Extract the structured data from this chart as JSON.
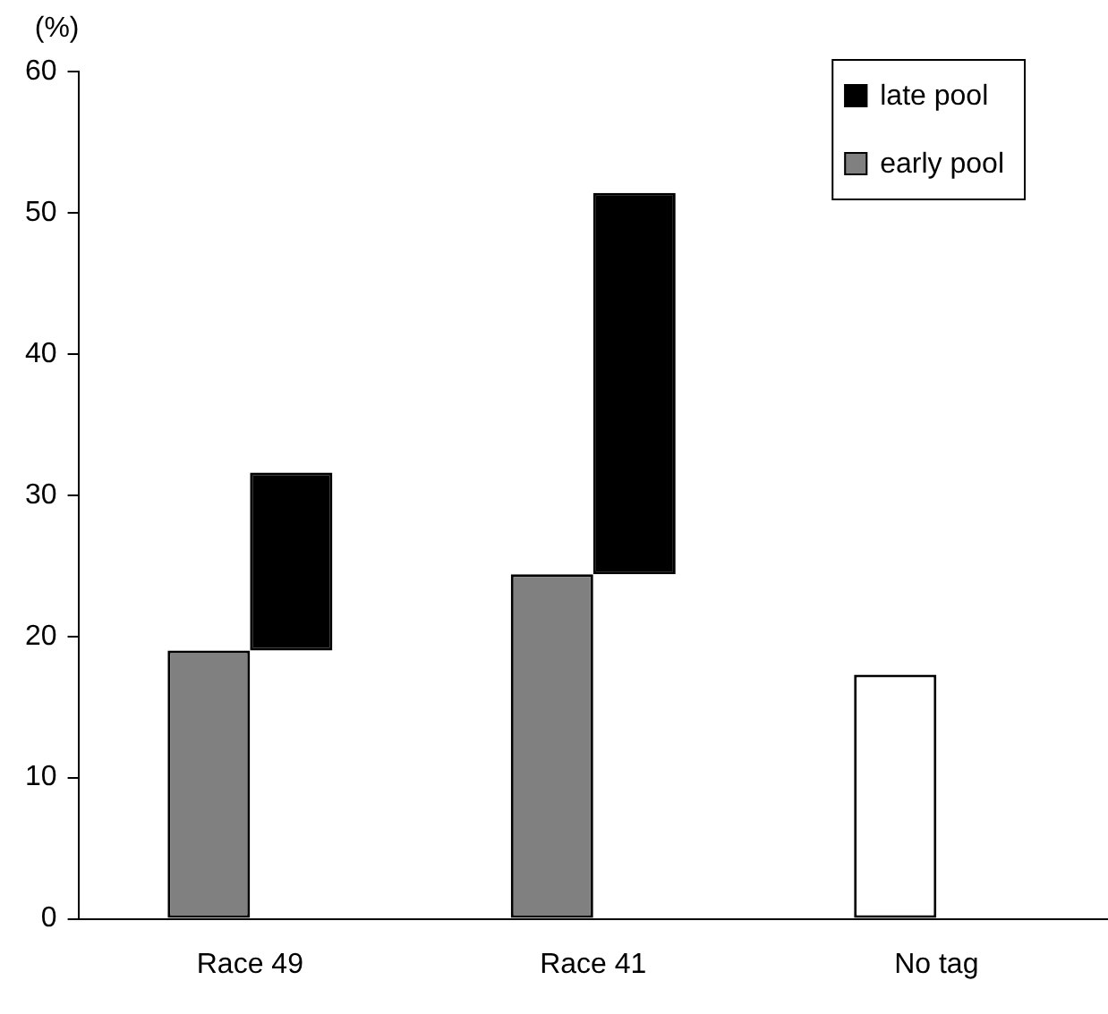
{
  "chart_data": {
    "type": "bar",
    "ylabel": "(%)",
    "categories": [
      "Race 49",
      "Race 41",
      "No tag"
    ],
    "series": [
      {
        "name": "early pool",
        "color": "#808080",
        "colors": [
          "#808080",
          "#808080",
          "#ffffff"
        ],
        "values": [
          19,
          24.4,
          17.3
        ]
      },
      {
        "name": "late pool",
        "color": "#000000",
        "base": [
          19,
          24.4,
          null
        ],
        "values": [
          12.6,
          27.0,
          null
        ]
      }
    ],
    "ylim": [
      0,
      60
    ],
    "yticks": [
      0,
      10,
      20,
      30,
      40,
      50,
      60
    ],
    "grid": false,
    "legend": "top right"
  }
}
